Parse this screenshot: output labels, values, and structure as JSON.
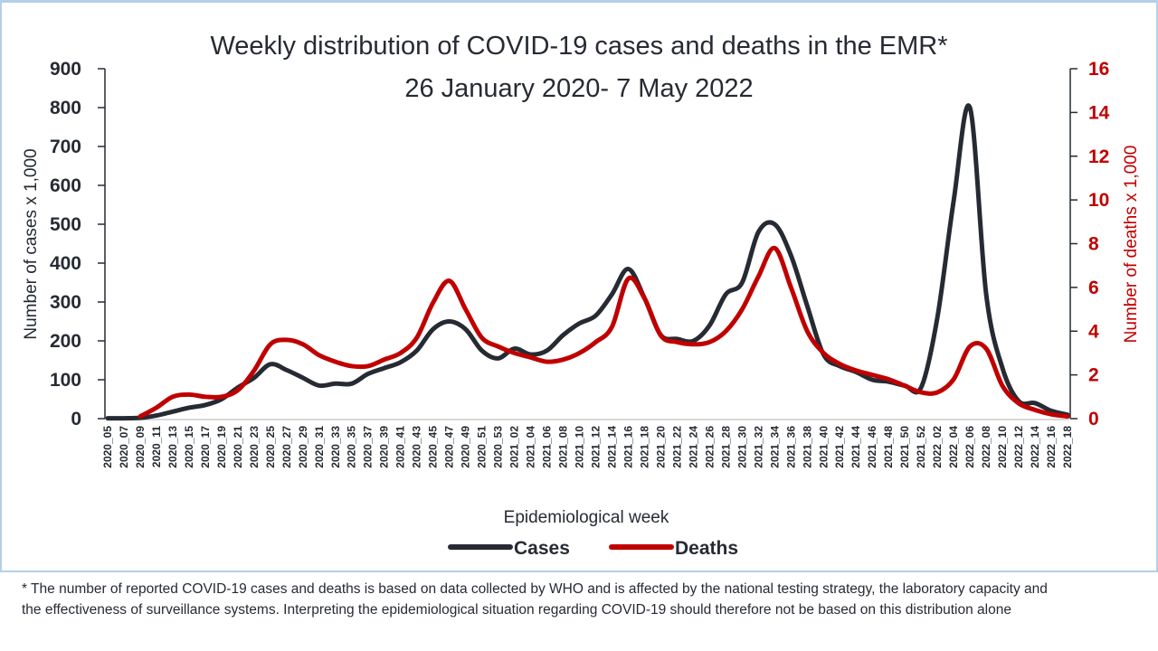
{
  "chart_data": {
    "type": "line",
    "title": "Weekly distribution of COVID-19 cases and deaths in the EMR*",
    "subtitle": "26 January 2020- 7 May 2022",
    "xlabel": "Epidemiological week",
    "ylabel_left": "Number of cases x 1,000",
    "ylabel_right": "Number of deaths x 1,000",
    "ylim_left": [
      0,
      900
    ],
    "ylim_right": [
      0,
      16
    ],
    "yticks_left": [
      0,
      100,
      200,
      300,
      400,
      500,
      600,
      700,
      800,
      900
    ],
    "yticks_right": [
      0,
      2,
      4,
      6,
      8,
      10,
      12,
      14,
      16
    ],
    "grid": false,
    "legend_position": "bottom",
    "x": [
      "2020_05",
      "2020_07",
      "2020_09",
      "2020_11",
      "2020_13",
      "2020_15",
      "2020_17",
      "2020_19",
      "2020_21",
      "2020_23",
      "2020_25",
      "2020_27",
      "2020_29",
      "2020_31",
      "2020_33",
      "2020_35",
      "2020_37",
      "2020_39",
      "2020_41",
      "2020_43",
      "2020_45",
      "2020_47",
      "2020_49",
      "2020_51",
      "2020_53",
      "2021_02",
      "2021_04",
      "2021_06",
      "2021_08",
      "2021_10",
      "2021_12",
      "2021_14",
      "2021_16",
      "2021_18",
      "2021_20",
      "2021_22",
      "2021_24",
      "2021_26",
      "2021_28",
      "2021_30",
      "2021_32",
      "2021_34",
      "2021_36",
      "2021_38",
      "2021_40",
      "2021_42",
      "2021_44",
      "2021_46",
      "2021_48",
      "2021_50",
      "2021_52",
      "2022_02",
      "2022_04",
      "2022_06",
      "2022_08",
      "2022_10",
      "2022_12",
      "2022_14",
      "2022_16",
      "2022_18"
    ],
    "series": [
      {
        "name": "Cases",
        "axis": "left",
        "color": "#262b33",
        "values": [
          1,
          1,
          2,
          8,
          18,
          28,
          35,
          50,
          80,
          105,
          140,
          125,
          105,
          85,
          90,
          90,
          115,
          130,
          145,
          175,
          230,
          250,
          230,
          175,
          155,
          180,
          165,
          175,
          215,
          245,
          265,
          320,
          385,
          310,
          215,
          205,
          200,
          240,
          320,
          350,
          480,
          500,
          420,
          290,
          165,
          135,
          120,
          100,
          95,
          85,
          80,
          260,
          560,
          800,
          320,
          130,
          45,
          40,
          20,
          10
        ]
      },
      {
        "name": "Deaths",
        "axis": "right",
        "color": "#c00000",
        "values": [
          0,
          0,
          0.1,
          0.5,
          1.0,
          1.1,
          1.0,
          1.0,
          1.3,
          2.2,
          3.4,
          3.6,
          3.4,
          2.9,
          2.6,
          2.4,
          2.4,
          2.7,
          3.0,
          3.7,
          5.3,
          6.3,
          5.0,
          3.7,
          3.3,
          3.0,
          2.8,
          2.6,
          2.7,
          3.0,
          3.5,
          4.2,
          6.4,
          5.5,
          3.8,
          3.5,
          3.4,
          3.5,
          4.0,
          5.0,
          6.5,
          7.8,
          6.0,
          4.0,
          3.0,
          2.5,
          2.2,
          2.0,
          1.8,
          1.5,
          1.2,
          1.2,
          1.8,
          3.3,
          3.2,
          1.5,
          0.7,
          0.4,
          0.2,
          0.1
        ]
      }
    ]
  },
  "footnote": {
    "line1": "* The number of reported COVID-19 cases and deaths is based on data collected by WHO and is affected by the national testing strategy, the laboratory capacity and",
    "line2": "the effectiveness of surveillance systems. Interpreting the epidemiological situation regarding COVID-19 should therefore not be based on this distribution alone"
  }
}
